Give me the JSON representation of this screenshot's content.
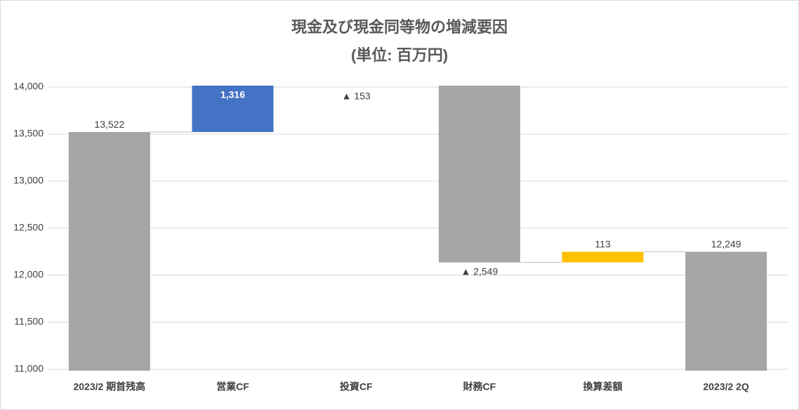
{
  "chart_data": {
    "type": "waterfall",
    "title": "現金及び現金同等物の増減要因",
    "subtitle": "(単位: 百万円)",
    "categories": [
      "2023/2 期首残高",
      "営業CF",
      "投資CF",
      "財務CF",
      "換算差額",
      "2023/2 2Q"
    ],
    "values": [
      13522,
      1316,
      -153,
      -2549,
      113,
      12249
    ],
    "value_labels": [
      "13,522",
      "1,316",
      "▲ 153",
      "▲ 2,549",
      "113",
      "12,249"
    ],
    "measure": [
      "total",
      "relative",
      "relative",
      "relative",
      "relative",
      "total"
    ],
    "colors": [
      "#a5a5a5",
      "#4472c4",
      "#a5a5a5",
      "#a5a5a5",
      "#ffc000",
      "#a5a5a5"
    ],
    "ylim": [
      11000,
      14000
    ],
    "yticks": [
      {
        "value": 11000,
        "label": "11,000"
      },
      {
        "value": 11500,
        "label": "11,500"
      },
      {
        "value": 12000,
        "label": "12,000"
      },
      {
        "value": 12500,
        "label": "12,500"
      },
      {
        "value": 13000,
        "label": "13,000"
      },
      {
        "value": 13500,
        "label": "13,500"
      },
      {
        "value": 14000,
        "label": "14,000"
      }
    ],
    "grid": true
  }
}
